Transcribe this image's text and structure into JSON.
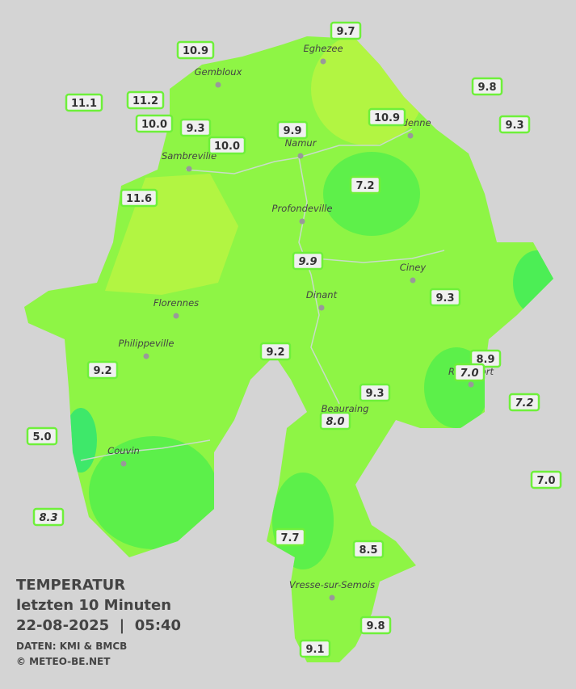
{
  "title": "TEMPERATUR",
  "subtitle": "letzten 10 Minuten",
  "timestamp": "22-08-2025  |  05:40",
  "source": "DATEN: KMI & BMCB",
  "credit": "© METEO-BE.NET",
  "cities": [
    "Eghezee",
    "Gembloux",
    "Andenne",
    "Namur",
    "Sambreville",
    "Profondeville",
    "Ciney",
    "Dinant",
    "Florennes",
    "Philippeville",
    "Rochefort",
    "Beauraing",
    "Couvin",
    "Vresse-sur-Semois"
  ],
  "stations": [
    "9.7",
    "10.9",
    "9.8",
    "11.1",
    "11.2",
    "10.0",
    "9.3",
    "9.9",
    "10.9",
    "9.3",
    "10.0",
    "7.2",
    "11.6",
    "9.9",
    "9.3",
    "9.2",
    "8.9",
    "7.0",
    "9.2",
    "9.3",
    "7.2",
    "8.0",
    "5.0",
    "7.0",
    "8.3",
    "7.7",
    "8.5",
    "9.8",
    "9.1"
  ]
}
